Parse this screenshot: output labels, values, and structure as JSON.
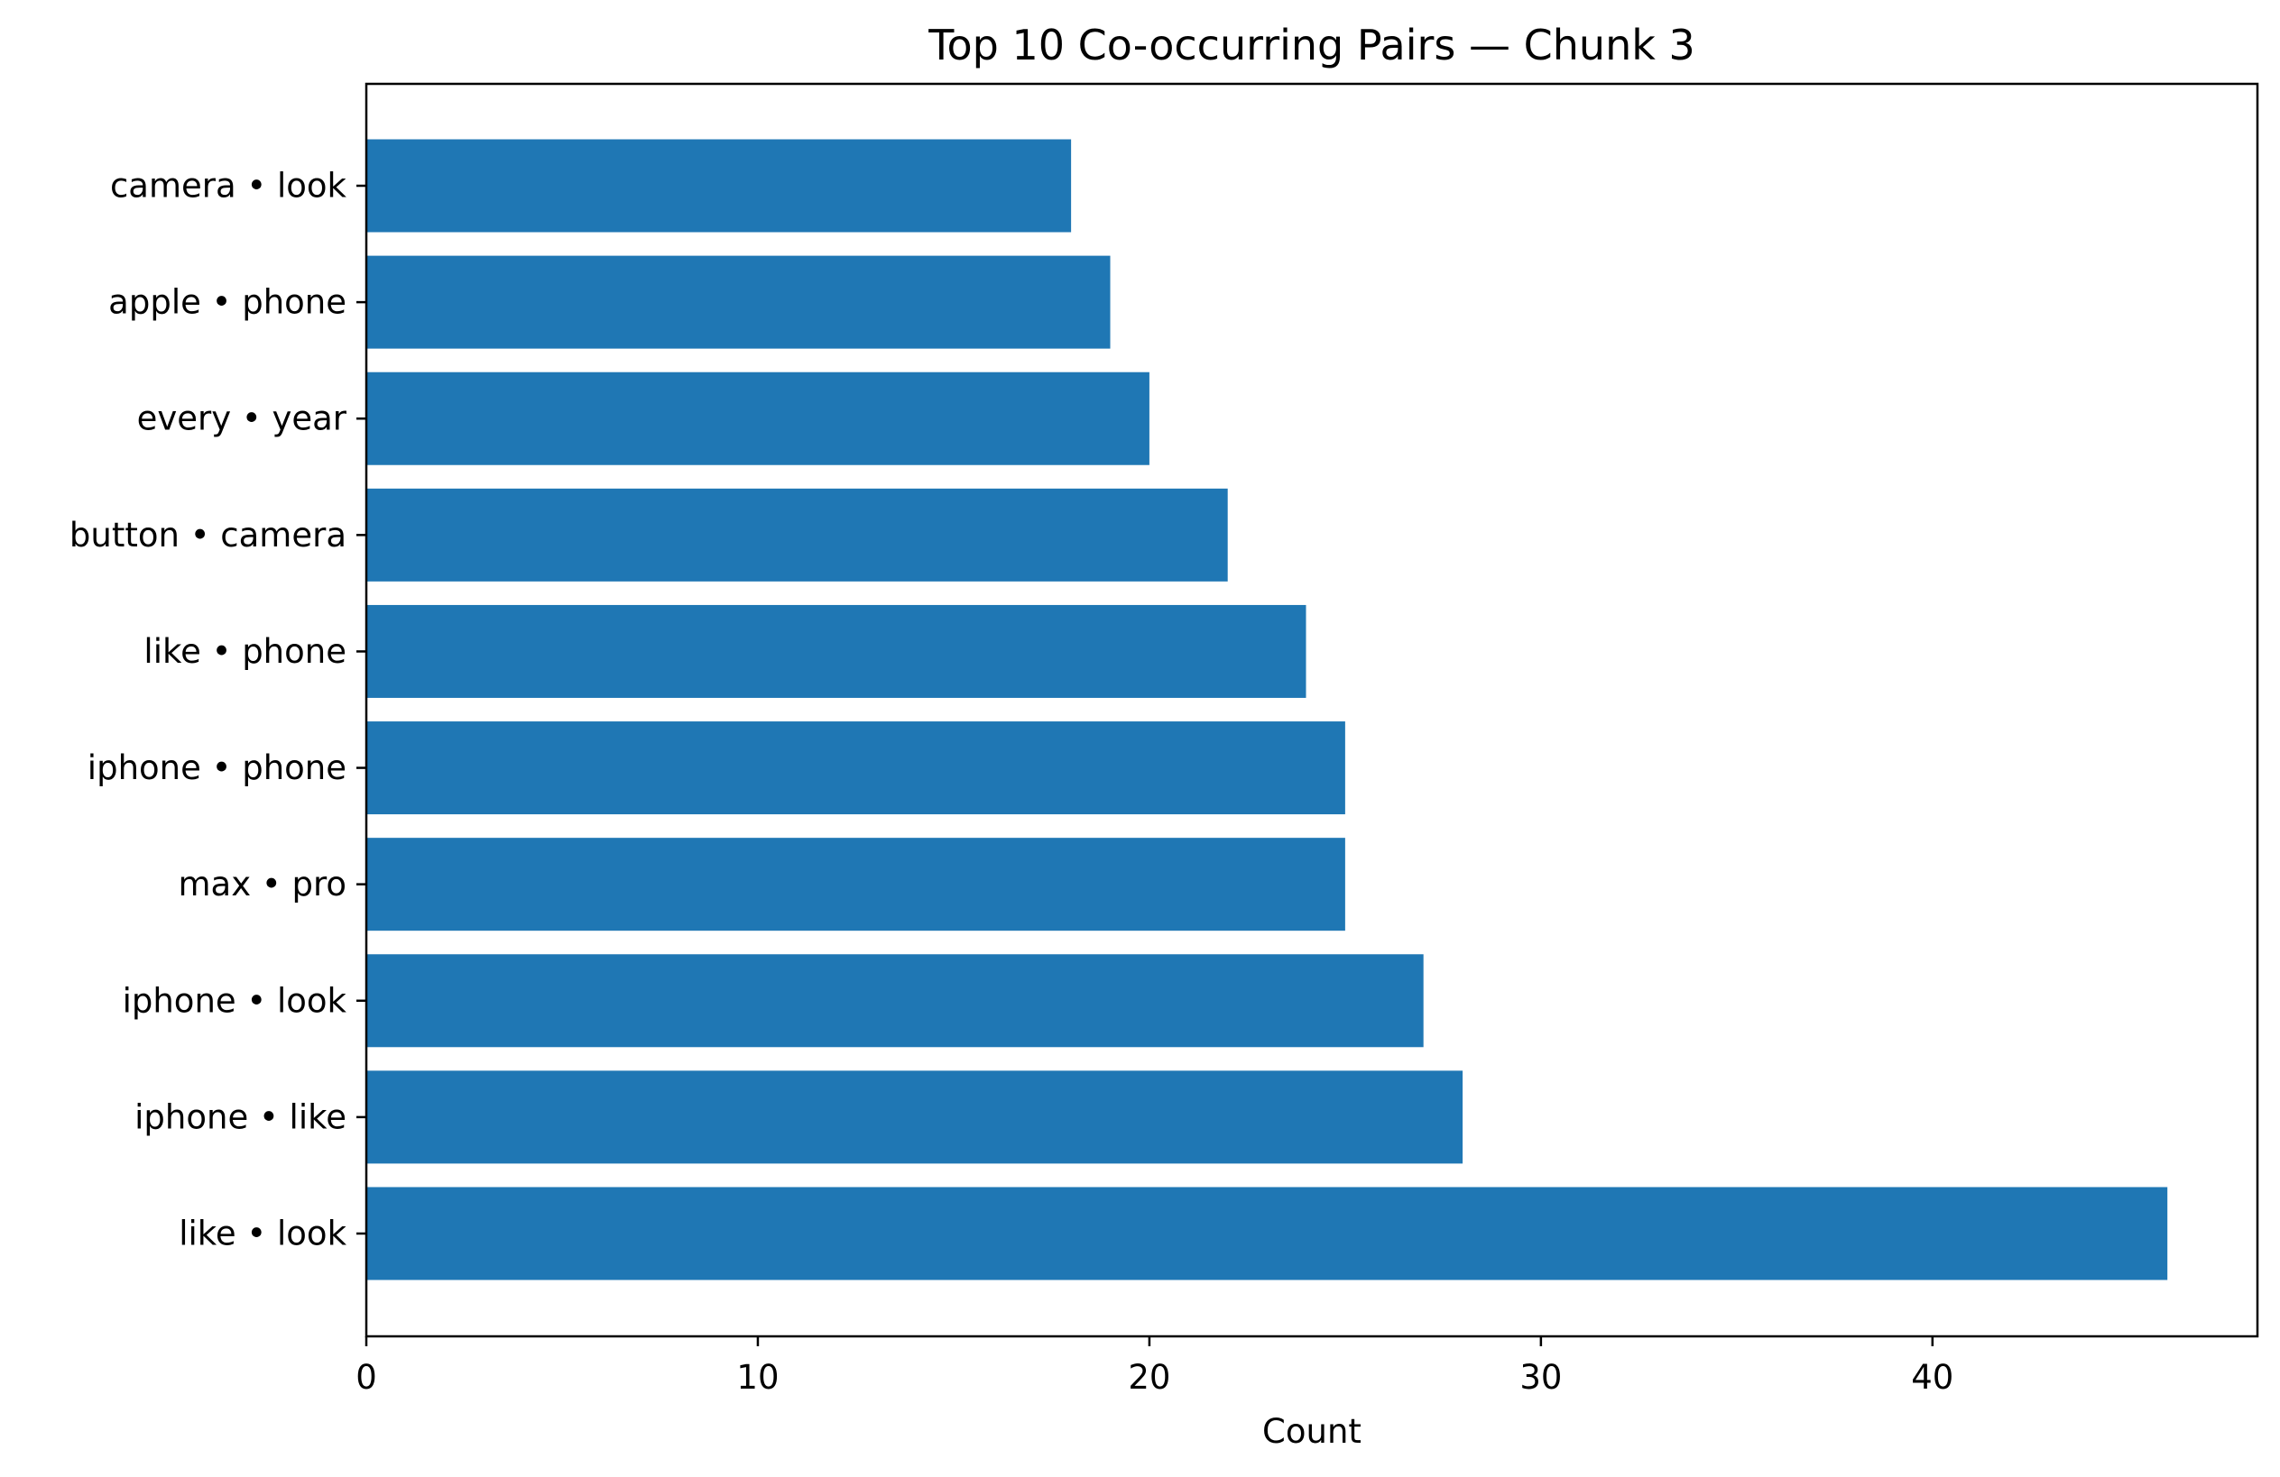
{
  "chart_data": {
    "type": "bar",
    "orientation": "horizontal",
    "title": "Top 10 Co-occurring Pairs — Chunk 3",
    "xlabel": "Count",
    "ylabel": "",
    "categories": [
      "like • look",
      "iphone • like",
      "iphone • look",
      "max • pro",
      "iphone • phone",
      "like • phone",
      "button • camera",
      "every • year",
      "apple • phone",
      "camera • look"
    ],
    "values": [
      46,
      28,
      27,
      25,
      25,
      24,
      22,
      20,
      19,
      18
    ],
    "xlim": [
      0,
      48.3
    ],
    "xticks": [
      0,
      10,
      20,
      30,
      40
    ],
    "xtick_labels": [
      "0",
      "10",
      "20",
      "30",
      "40"
    ],
    "bar_color": "#1f77b4",
    "grid": false,
    "legend": "none"
  }
}
